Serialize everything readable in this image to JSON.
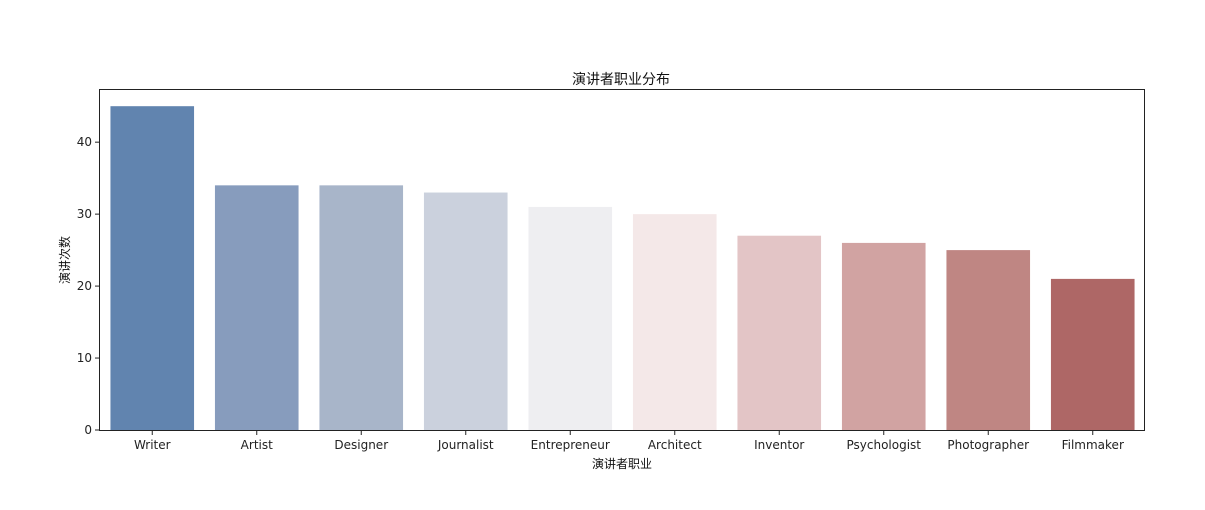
{
  "chart_data": {
    "type": "bar",
    "title": "演讲者职业分布",
    "xlabel": "演讲者职业",
    "ylabel": "演讲次数",
    "categories": [
      "Writer",
      "Artist",
      "Designer",
      "Journalist",
      "Entrepreneur",
      "Architect",
      "Inventor",
      "Psychologist",
      "Photographer",
      "Filmmaker"
    ],
    "values": [
      45,
      34,
      34,
      33,
      31,
      30,
      27,
      26,
      25,
      21
    ],
    "colors": [
      "#6184af",
      "#879cbd",
      "#a8b5c9",
      "#cbd1dd",
      "#eeeef1",
      "#f4e8e8",
      "#e3c5c6",
      "#d1a3a2",
      "#bf8683",
      "#ae6766"
    ],
    "yticks": [
      0,
      10,
      20,
      30,
      40
    ],
    "ylim": [
      0,
      47.25
    ],
    "grid": false,
    "legend": "none"
  }
}
